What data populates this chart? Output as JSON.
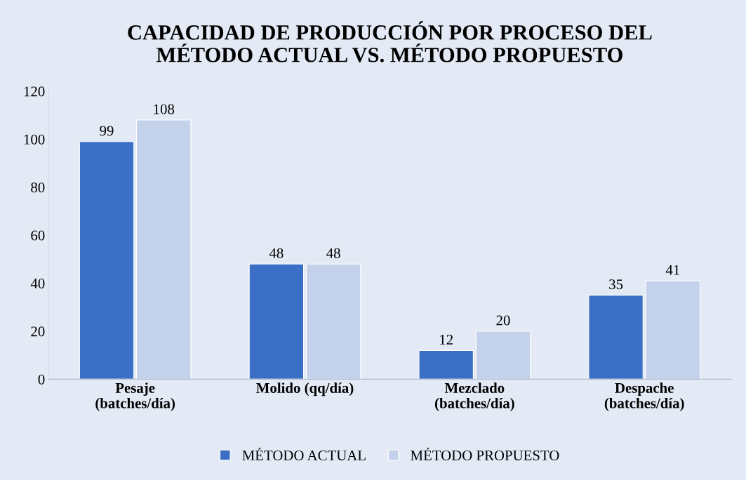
{
  "chart_data": {
    "type": "bar",
    "title": "CAPACIDAD DE PRODUCCIÓN POR PROCESO DEL\nMÉTODO ACTUAL VS. MÉTODO PROPUESTO",
    "categories": [
      "Pesaje\n(batches/día)",
      "Molido (qq/día)",
      "Mezclado\n(batches/día)",
      "Despache\n(batches/día)"
    ],
    "series": [
      {
        "name": "MÉTODO ACTUAL",
        "color": "#3b6fc6",
        "values": [
          99,
          48,
          12,
          35
        ]
      },
      {
        "name": "MÉTODO PROPUESTO",
        "color": "#c3d1ea",
        "values": [
          108,
          48,
          20,
          41
        ]
      }
    ],
    "ylim": [
      0,
      120
    ],
    "yticks": [
      0,
      20,
      40,
      60,
      80,
      100,
      120
    ],
    "grid": false,
    "legend": "bottom",
    "data_labels": true
  }
}
